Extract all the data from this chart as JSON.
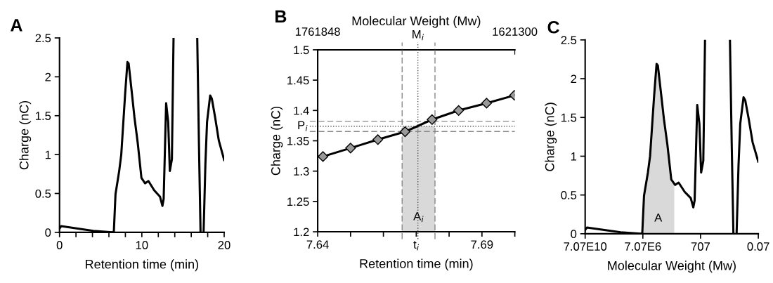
{
  "chart_data": [
    {
      "type": "line",
      "title": "A",
      "xlabel": "Retention time (min)",
      "ylabel": "Charge (nC)",
      "series": [
        {
          "color": "#000000",
          "x": [
            0,
            0.2,
            4.1,
            6.4,
            6.6,
            6.8,
            7.25,
            7.5,
            7.97,
            8.25,
            8.4,
            8.8,
            9.1,
            9.5,
            9.95,
            10.4,
            10.8,
            11.5,
            11.85,
            12.2,
            12.5,
            12.65,
            12.95,
            13.2,
            13.4,
            13.65,
            13.85,
            15.3,
            16.73,
            16.93,
            17.13,
            17.3,
            17.5,
            17.72,
            17.92,
            18.3,
            18.5,
            18.9,
            19.35,
            20
          ],
          "values": [
            0.05,
            0.08,
            0.02,
            0,
            0.01,
            0.49,
            0.79,
            1.0,
            1.78,
            2.19,
            2.17,
            1.78,
            1.48,
            1.15,
            0.7,
            0.63,
            0.66,
            0.54,
            0.5,
            0.46,
            0.34,
            0.43,
            1.66,
            1.42,
            0.79,
            0.94,
            2.5,
            null,
            2.5,
            1.18,
            0,
            null,
            0,
            0.88,
            1.42,
            1.76,
            1.72,
            1.48,
            1.18,
            0.93
          ]
        }
      ],
      "xlim": [
        0,
        20
      ],
      "ylim": [
        0,
        2.5
      ],
      "xticks": [
        0,
        {
          "value": 2,
          "label": null
        },
        {
          "value": 4,
          "label": null
        },
        {
          "value": 6,
          "label": null
        },
        {
          "value": 8,
          "label": null
        },
        10,
        {
          "value": 12,
          "label": null
        },
        {
          "value": 14,
          "label": null
        },
        {
          "value": 16,
          "label": null
        },
        {
          "value": 18,
          "label": null
        },
        20
      ],
      "yticks": [
        0,
        0.5,
        1,
        1.5,
        2,
        2.5
      ]
    },
    {
      "type": "line",
      "title": "B",
      "xlabel": "Retention time (min)",
      "ylabel": "Charge (nC)",
      "x2label": "Molecular Weight (Mw)",
      "series": [
        {
          "color": "#000000",
          "marker": "diamond",
          "x": [
            7.6416,
            7.65,
            7.6583,
            7.6666,
            7.6748,
            7.6829,
            7.6914,
            7.6999
          ],
          "values": [
            1.324,
            1.338,
            1.352,
            1.365,
            1.385,
            1.4,
            1.412,
            1.425
          ]
        },
        {
          "type": "area",
          "color": "#d9d9d9",
          "x": [
            7.6657,
            7.6757
          ],
          "values": [
            1.374,
            1.374
          ]
        }
      ],
      "annotations": [
        "A$_{i}$"
      ],
      "xlim": [
        7.64,
        7.7
      ],
      "ylim": [
        1.2,
        1.5
      ],
      "xticks": [
        7.64,
        {
          "value": 7.65,
          "label": null
        },
        {
          "value": 7.66,
          "label": null
        },
        {
          "value": 7.67,
          "label": "t$_{i}$"
        },
        {
          "value": 7.68,
          "label": null
        },
        7.69,
        {
          "value": 7.7,
          "label": null
        }
      ],
      "yticks": [
        1.2,
        1.25,
        1.3,
        1.35,
        1.4,
        1.45,
        1.5
      ],
      "x2lim": [
        1761848,
        1621300
      ],
      "x2ticks": [
        1761848,
        1621300
      ],
      "ref_lines": [
        {
          "axis": "x",
          "value": 7.6705,
          "label": "M$_{i}$",
          "line_style": "dotted",
          "color": "#555555"
        },
        {
          "axis": "y",
          "value": 1.374,
          "label": "P$_{i}$",
          "line_style": "dotted",
          "color": "#555555"
        },
        {
          "axis": "y",
          "value": 1.3822,
          "line_style": "dashed",
          "color": "#888888"
        },
        {
          "axis": "y",
          "value": 1.3653,
          "line_style": "dashed",
          "color": "#888888"
        },
        {
          "axis": "x",
          "value": 7.6657,
          "line_style": "dashed",
          "color": "#888888"
        },
        {
          "axis": "x",
          "value": 7.6757,
          "line_style": "dashed",
          "color": "#888888"
        }
      ]
    },
    {
      "type": "line",
      "title": "C",
      "xlabel": "Molecular Weight (Mw)",
      "ylabel": "Charge (nC)",
      "log": "x",
      "series": [
        {
          "color": "#000000",
          "x": [
            70700000000.0,
            53600000000.0,
            245000000.0,
            10200000.0,
            7750000.0,
            5880000.0,
            3160000.0,
            2240000.0,
            1170000.0,
            793000.0,
            645000.0,
            371000.0,
            245000.0,
            141000.0,
            75800.0,
            40700.0,
            23400.0,
            8900.0,
            5490.0,
            3380.0,
            2240.0,
            1820.0,
            1200.0,
            850,
            645,
            456,
            346,
            50,
            6.48,
            4.91,
            3.73,
            3.0,
            2.24,
            1.65,
            1.25,
            0.74,
            0.562,
            0.323,
            0.174,
            0.0707
          ],
          "values": [
            0.05,
            0.08,
            0.02,
            0,
            0.01,
            0.49,
            0.79,
            1.0,
            1.78,
            2.19,
            2.17,
            1.78,
            1.48,
            1.15,
            0.7,
            0.63,
            0.66,
            0.54,
            0.5,
            0.46,
            0.34,
            0.43,
            1.66,
            1.42,
            0.79,
            0.94,
            2.5,
            null,
            2.5,
            1.18,
            0,
            null,
            0,
            0.88,
            1.42,
            1.76,
            1.72,
            1.48,
            1.18,
            0.93
          ]
        },
        {
          "type": "area",
          "color": "#d9d9d9",
          "x": [
            7750000.0,
            5880000.0,
            3160000.0,
            2240000.0,
            1170000.0,
            793000.0,
            645000.0,
            371000.0,
            245000.0,
            141000.0,
            75800.0,
            47000.0
          ],
          "values": [
            0.01,
            0.49,
            0.79,
            1.0,
            1.78,
            2.19,
            2.17,
            1.78,
            1.48,
            1.15,
            0.7,
            0.64
          ]
        }
      ],
      "annotations": [
        "A"
      ],
      "xlim": [
        70700000000.0,
        0.07
      ],
      "ylim": [
        0,
        2.5
      ],
      "xticks": [
        {
          "value": 70700000000.0,
          "label": "7.07E10"
        },
        {
          "value": 7070000.0,
          "label": "7.07E6"
        },
        707,
        0.07
      ],
      "yticks": [
        0,
        0.5,
        1,
        1.5,
        2,
        2.5
      ]
    }
  ]
}
